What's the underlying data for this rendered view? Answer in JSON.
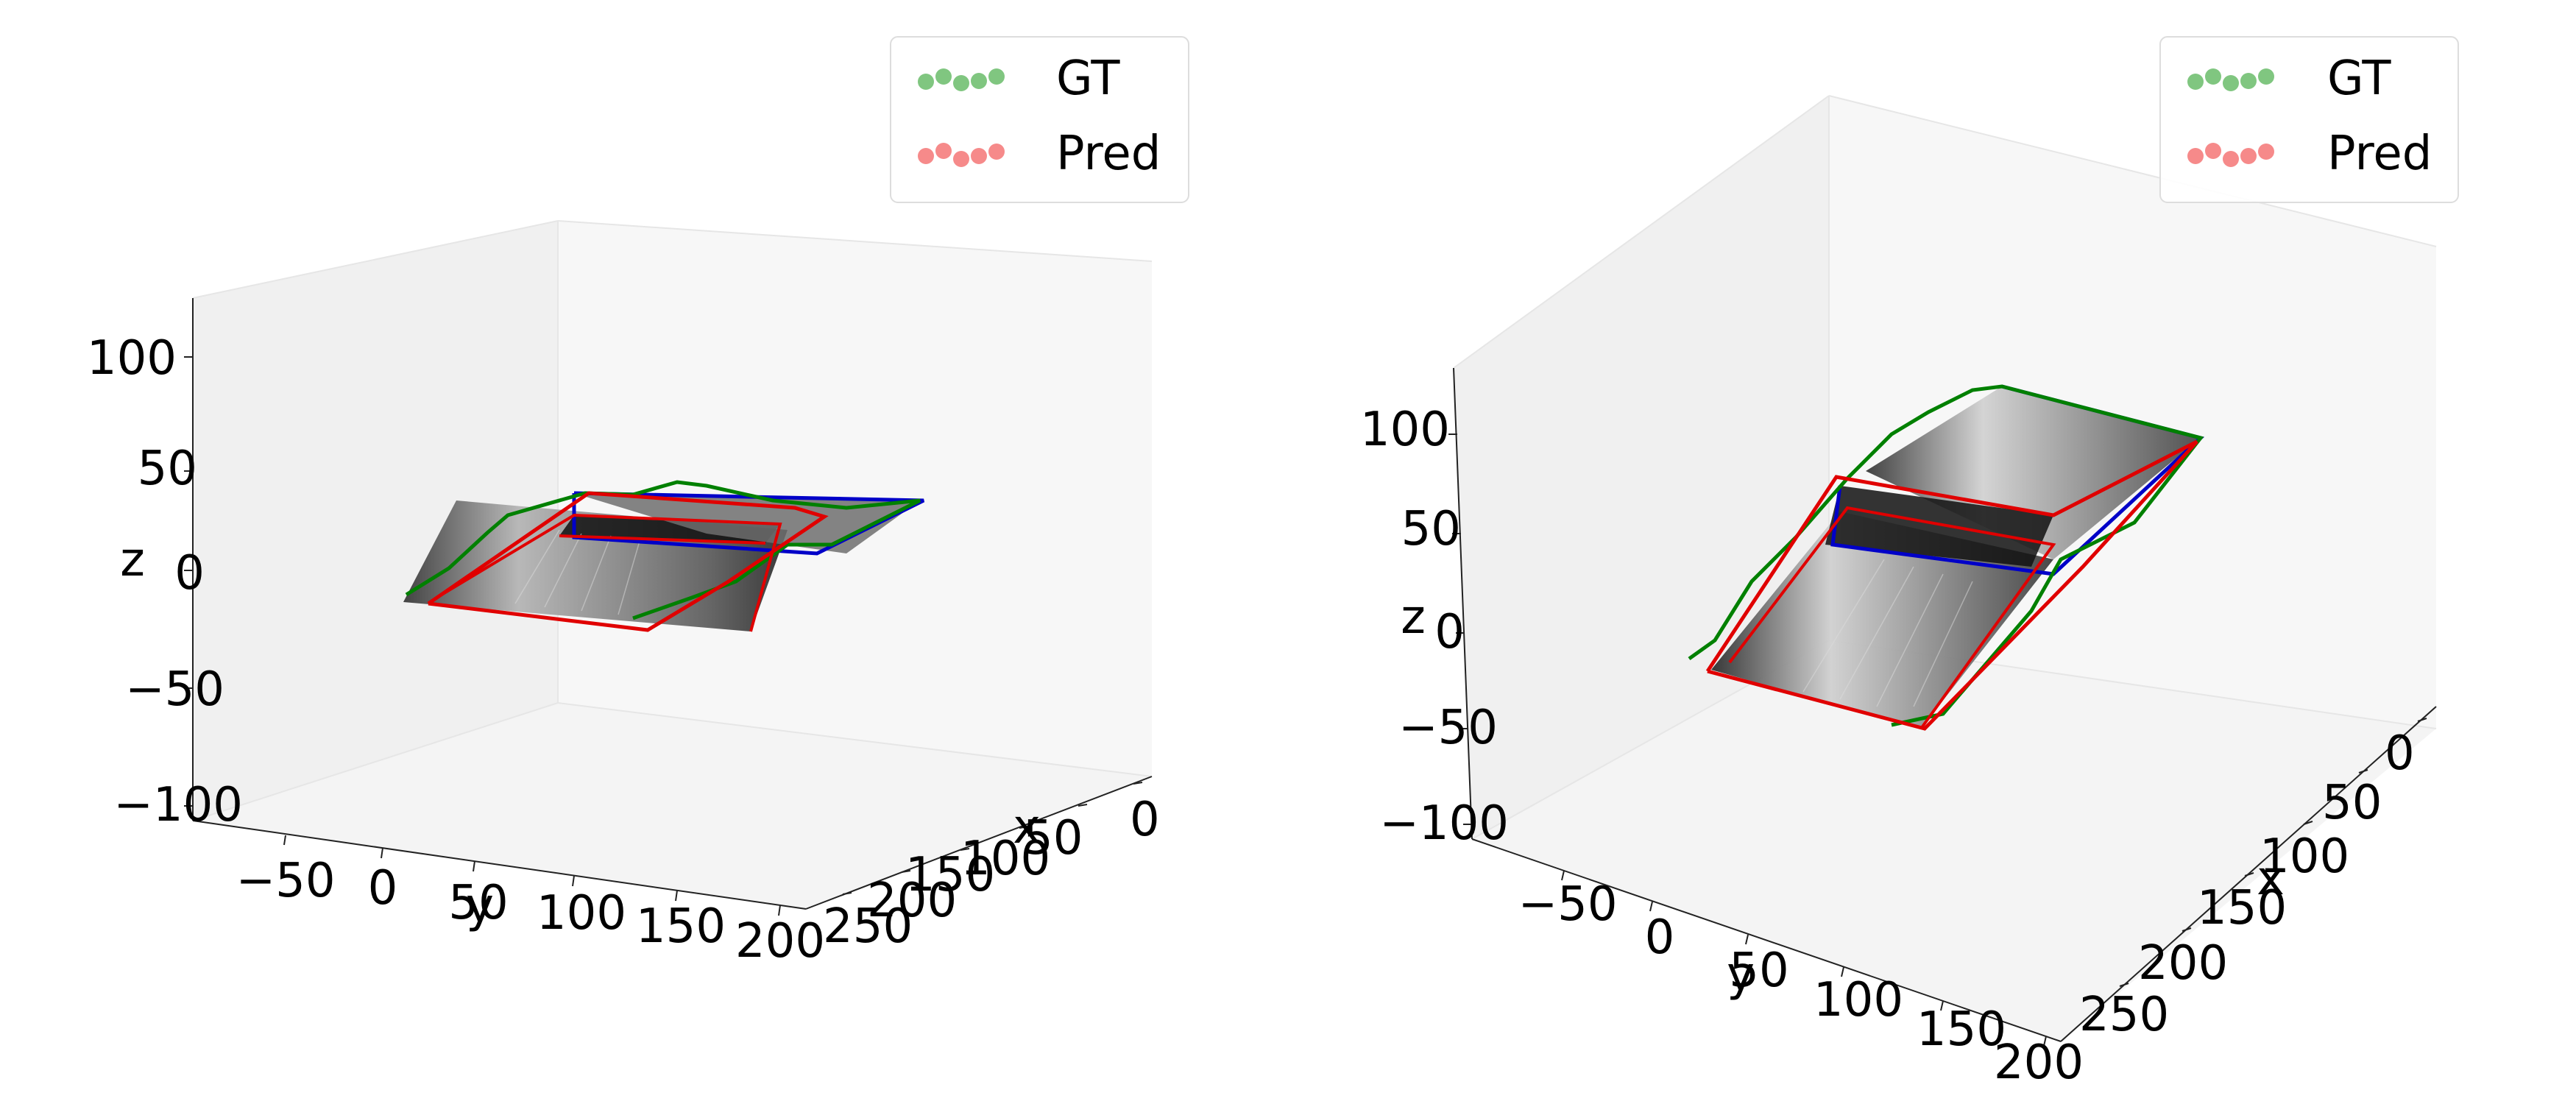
{
  "legend": {
    "items": [
      {
        "label": "GT",
        "color": "#2ca02c"
      },
      {
        "label": "Pred",
        "color": "#f03c3c"
      }
    ]
  },
  "colors": {
    "gt": "#008000",
    "pred": "#e00000",
    "pred_fill": "#f03c3c",
    "gt_fill": "#2ca02c",
    "blue_frame": "#0000c8",
    "pane_light": "#f7f7f7",
    "pane_side": "#f0f0f0",
    "pane_floor": "#f4f4f4"
  },
  "chart_data": [
    {
      "type": "scatter",
      "subtype": "3d",
      "xlabel": "x",
      "ylabel": "y",
      "zlabel": "z",
      "xticks": [
        "0",
        "50",
        "100",
        "150",
        "200",
        "250"
      ],
      "yticks": [
        "−50",
        "0",
        "50",
        "100",
        "150",
        "200"
      ],
      "zticks": [
        "−100",
        "−50",
        "0",
        "50",
        "100"
      ],
      "series": [
        {
          "name": "GT"
        },
        {
          "name": "Pred"
        }
      ],
      "legend_position": "top-right"
    },
    {
      "type": "scatter",
      "subtype": "3d",
      "xlabel": "x",
      "ylabel": "y",
      "zlabel": "z",
      "xticks": [
        "0",
        "50",
        "100",
        "150",
        "200",
        "250"
      ],
      "yticks": [
        "−50",
        "0",
        "50",
        "100",
        "150",
        "200"
      ],
      "zticks": [
        "−100",
        "−50",
        "0",
        "50",
        "100"
      ],
      "series": [
        {
          "name": "GT"
        },
        {
          "name": "Pred"
        }
      ],
      "legend_position": "top-right"
    }
  ]
}
